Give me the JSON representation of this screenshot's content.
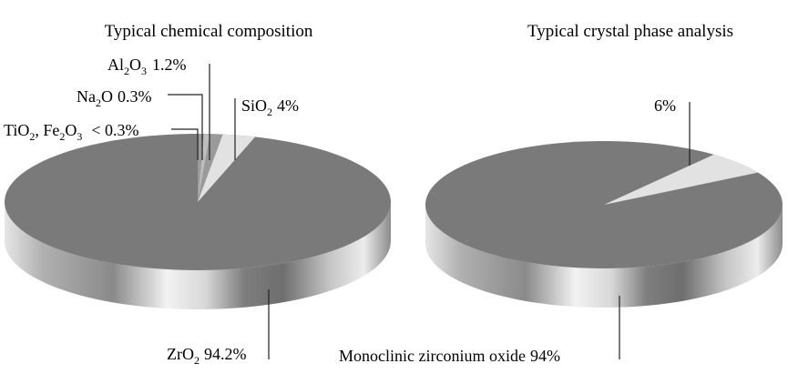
{
  "chart_data": [
    {
      "type": "pie",
      "title": "Typical chemical composition",
      "slices": [
        {
          "key": "zro2",
          "base": "ZrO",
          "subscript": "2",
          "rest": "",
          "value_text": "94.2%",
          "value": 94.2
        },
        {
          "key": "sio2",
          "base": "SiO",
          "subscript": "2",
          "rest": "",
          "value_text": "4%",
          "value": 4
        },
        {
          "key": "al2o3",
          "base": "Al",
          "subscript": "2",
          "rest": "O",
          "subscript2": "3",
          "value_text": "1.2%",
          "value": 1.2
        },
        {
          "key": "na2o",
          "base": "Na",
          "subscript": "2",
          "rest": "O",
          "value_text": "0.3%",
          "value": 0.3
        },
        {
          "key": "tio2_fe2o3",
          "base": "TiO",
          "subscript": "2",
          "rest": ", Fe",
          "subscript2": "2",
          "rest2": "O",
          "subscript3": "3",
          "value_text": "< 0.3%",
          "value": 0.3
        }
      ]
    },
    {
      "type": "pie",
      "title": "Typical crystal phase analysis",
      "slices": [
        {
          "key": "monoclinic",
          "label": "Monoclinic zirconium oxide",
          "value_text": "94%",
          "value": 94
        },
        {
          "key": "other",
          "label": "",
          "value_text": "6%",
          "value": 6
        }
      ]
    }
  ],
  "colors": {
    "top": "#7a7a7a",
    "slice_light": "#e2e2e2",
    "slice_mid": "#bdbdbd",
    "slice_dark": "#9a9a9a",
    "leader": "#222222"
  }
}
